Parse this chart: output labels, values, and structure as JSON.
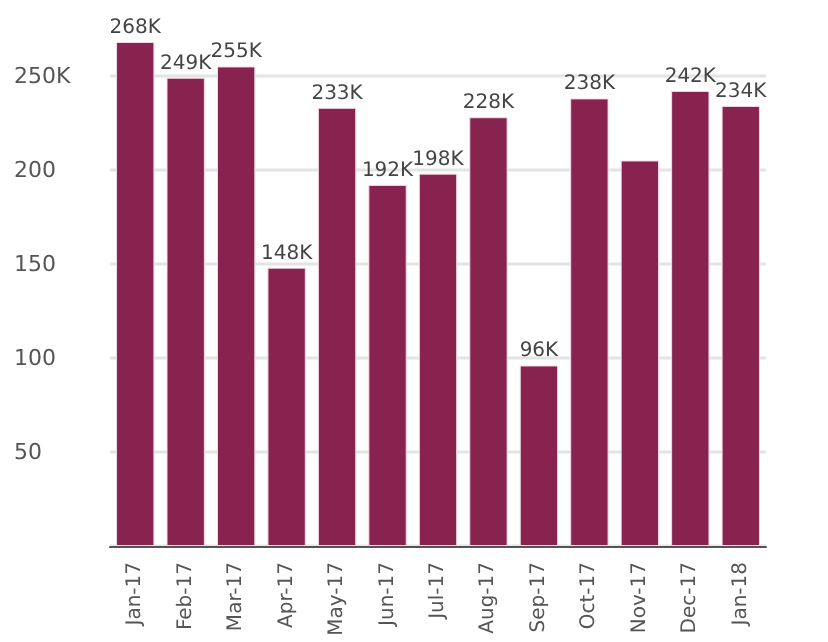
{
  "chart_data": {
    "type": "bar",
    "categories": [
      "Jan-17",
      "Feb-17",
      "Mar-17",
      "Apr-17",
      "May-17",
      "Jun-17",
      "Jul-17",
      "Aug-17",
      "Sep-17",
      "Oct-17",
      "Nov-17",
      "Dec-17",
      "Jan-18"
    ],
    "values": [
      268,
      249,
      255,
      148,
      233,
      192,
      198,
      228,
      96,
      238,
      205,
      242,
      234
    ],
    "value_labels": [
      "268K",
      "249K",
      "255K",
      "148K",
      "233K",
      "192K",
      "198K",
      "228K",
      "96K",
      "238K",
      null,
      "242K",
      "234K"
    ],
    "color": "#87234e",
    "ylim": [
      0,
      268
    ],
    "yticks": [
      {
        "value": 0,
        "label": null
      },
      50,
      100,
      150,
      200,
      {
        "value": 250,
        "label": "250K"
      }
    ],
    "grid": "y"
  }
}
